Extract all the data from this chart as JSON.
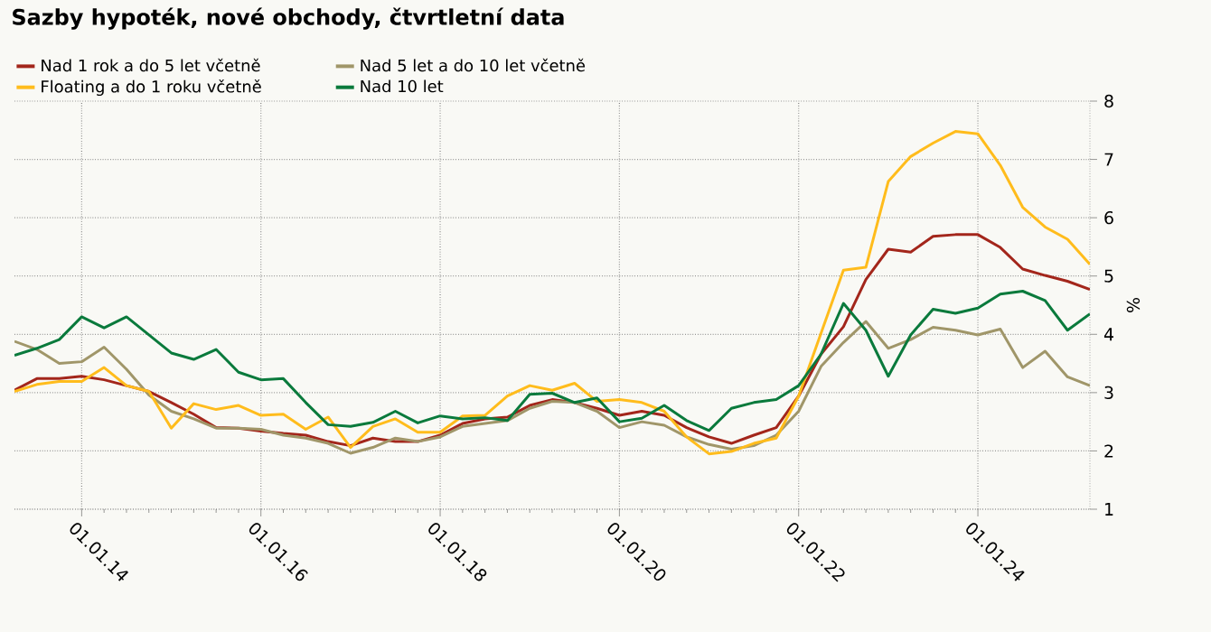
{
  "chart_data": {
    "type": "line",
    "title": "Sazby hypoték, nové obchody, čtvrtletní data",
    "ylabel": "%",
    "x": [
      "2013-04-01",
      "2013-07-01",
      "2013-10-01",
      "2014-01-01",
      "2014-04-01",
      "2014-07-01",
      "2014-10-01",
      "2015-01-01",
      "2015-04-01",
      "2015-07-01",
      "2015-10-01",
      "2016-01-01",
      "2016-04-01",
      "2016-07-01",
      "2016-10-01",
      "2017-01-01",
      "2017-04-01",
      "2017-07-01",
      "2017-10-01",
      "2018-01-01",
      "2018-04-01",
      "2018-07-01",
      "2018-10-01",
      "2019-01-01",
      "2019-04-01",
      "2019-07-01",
      "2019-10-01",
      "2020-01-01",
      "2020-04-01",
      "2020-07-01",
      "2020-10-01",
      "2021-01-01",
      "2021-04-01",
      "2021-07-01",
      "2021-10-01",
      "2022-01-01",
      "2022-04-01",
      "2022-07-01",
      "2022-10-01",
      "2023-01-01",
      "2023-04-01",
      "2023-07-01",
      "2023-10-01",
      "2024-01-01",
      "2024-04-01",
      "2024-07-01",
      "2024-10-01",
      "2025-01-01",
      "2025-04-01"
    ],
    "series": [
      {
        "name": "Nad 1 rok a do 5 let včetně",
        "color": "#a3261b",
        "values": [
          3.04,
          3.24,
          3.24,
          3.28,
          3.22,
          3.12,
          3.02,
          2.83,
          2.63,
          2.4,
          2.39,
          2.34,
          2.3,
          2.27,
          2.16,
          2.09,
          2.22,
          2.16,
          2.16,
          2.27,
          2.47,
          2.55,
          2.58,
          2.78,
          2.88,
          2.83,
          2.73,
          2.61,
          2.68,
          2.61,
          2.4,
          2.24,
          2.13,
          2.27,
          2.4,
          2.94,
          3.66,
          4.13,
          4.94,
          5.46,
          5.41,
          5.68,
          5.71,
          5.71,
          5.49,
          5.12,
          5.01,
          4.91,
          4.77
        ]
      },
      {
        "name": "Nad 5 let a do 10 let včetně",
        "color": "#a09669",
        "values": [
          3.88,
          3.74,
          3.5,
          3.53,
          3.78,
          3.4,
          2.96,
          2.68,
          2.55,
          2.39,
          2.39,
          2.37,
          2.27,
          2.22,
          2.13,
          1.96,
          2.06,
          2.22,
          2.16,
          2.24,
          2.42,
          2.47,
          2.52,
          2.73,
          2.85,
          2.83,
          2.68,
          2.4,
          2.5,
          2.44,
          2.24,
          2.11,
          2.03,
          2.09,
          2.27,
          2.68,
          3.45,
          3.86,
          4.22,
          3.76,
          3.91,
          4.12,
          4.07,
          3.99,
          4.09,
          3.43,
          3.71,
          3.27,
          3.12
        ]
      },
      {
        "name": "Floating a do 1 roku včetně",
        "color": "#ffbc1c",
        "values": [
          3.02,
          3.14,
          3.19,
          3.19,
          3.43,
          3.12,
          3.02,
          2.39,
          2.81,
          2.71,
          2.78,
          2.61,
          2.63,
          2.37,
          2.58,
          2.06,
          2.42,
          2.55,
          2.32,
          2.32,
          2.6,
          2.61,
          2.94,
          3.12,
          3.04,
          3.16,
          2.85,
          2.88,
          2.83,
          2.68,
          2.24,
          1.95,
          1.99,
          2.13,
          2.22,
          2.94,
          4.02,
          5.1,
          5.15,
          6.62,
          7.05,
          7.28,
          7.48,
          7.44,
          6.9,
          6.18,
          5.84,
          5.63,
          5.2
        ]
      },
      {
        "name": "Nad 10 let",
        "color": "#0a7a3c",
        "values": [
          3.64,
          3.76,
          3.91,
          4.3,
          4.11,
          4.3,
          3.99,
          3.68,
          3.57,
          3.74,
          3.35,
          3.22,
          3.24,
          2.83,
          2.45,
          2.42,
          2.49,
          2.68,
          2.48,
          2.6,
          2.55,
          2.57,
          2.52,
          2.97,
          2.99,
          2.83,
          2.91,
          2.5,
          2.56,
          2.78,
          2.52,
          2.35,
          2.73,
          2.83,
          2.88,
          3.12,
          3.66,
          4.53,
          4.07,
          3.28,
          3.99,
          4.43,
          4.36,
          4.45,
          4.69,
          4.74,
          4.58,
          4.07,
          4.35
        ]
      }
    ],
    "xlim": [
      "2013-04-01",
      "2025-04-01"
    ],
    "xticks": [
      {
        "value": "2014-01-01",
        "label": "01.01.14"
      },
      {
        "value": "2016-01-01",
        "label": "01.01.16"
      },
      {
        "value": "2018-01-01",
        "label": "01.01.18"
      },
      {
        "value": "2020-01-01",
        "label": "01.01.20"
      },
      {
        "value": "2022-01-01",
        "label": "01.01.22"
      },
      {
        "value": "2024-01-01",
        "label": "01.01.24"
      }
    ],
    "ylim": [
      1,
      8
    ],
    "yticks": [
      1,
      2,
      3,
      4,
      5,
      6,
      7,
      8
    ],
    "grid": true,
    "legend": "top left"
  }
}
